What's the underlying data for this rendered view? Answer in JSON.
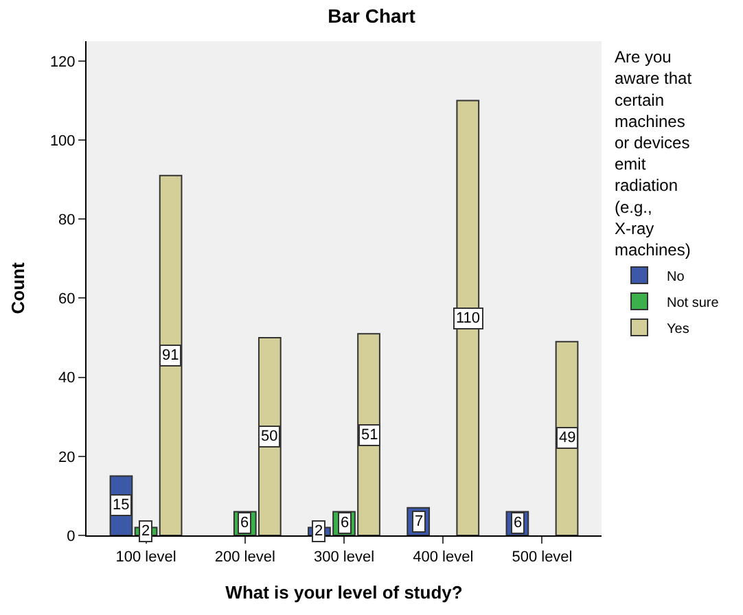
{
  "chart_data": {
    "type": "bar",
    "title": "Bar Chart",
    "xlabel": "What is your level of study?",
    "ylabel": "Count",
    "legend_title": "Are you aware that certain machines or devices emit radiation (e.g., X-ray machines)",
    "categories": [
      "100 level",
      "200 level",
      "300 level",
      "400 level",
      "500 level"
    ],
    "series": [
      {
        "name": "No",
        "color": "#3c58a8",
        "values": [
          15,
          null,
          2,
          7,
          6
        ]
      },
      {
        "name": "Not sure",
        "color": "#3cb04a",
        "values": [
          2,
          6,
          6,
          null,
          null
        ]
      },
      {
        "name": "Yes",
        "color": "#d4cf98",
        "values": [
          91,
          50,
          51,
          110,
          49
        ]
      }
    ],
    "ylim": [
      0,
      125
    ],
    "yticks": [
      0,
      20,
      40,
      60,
      80,
      100,
      120
    ],
    "grid": false,
    "legend": "right",
    "data_labels": true
  }
}
